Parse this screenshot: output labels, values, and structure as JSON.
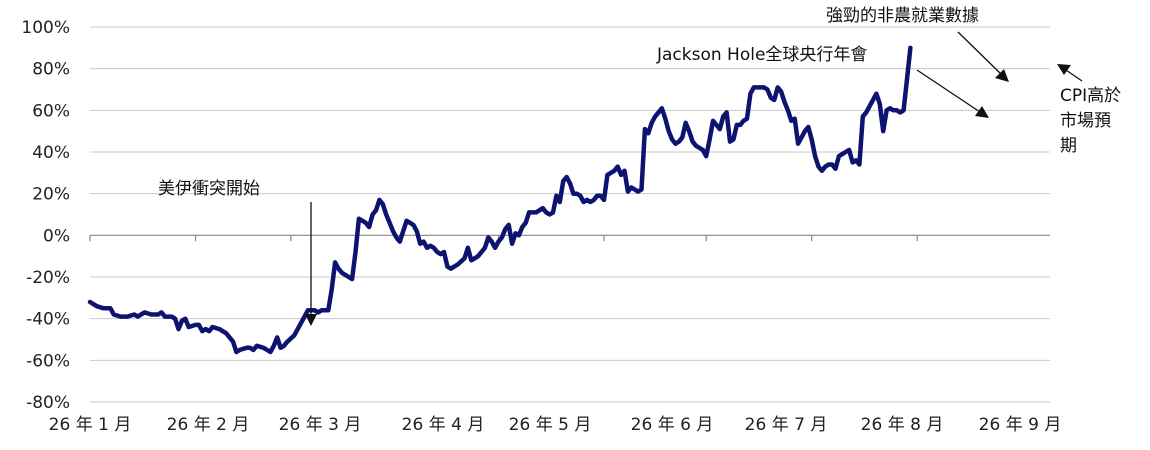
{
  "chart_data": {
    "type": "line",
    "title": "",
    "xlabel": "",
    "ylabel": "",
    "ylim": [
      -80,
      100
    ],
    "yticks": [
      -80,
      -60,
      -40,
      -20,
      0,
      20,
      40,
      60,
      80,
      100
    ],
    "ytick_labels": [
      "-80%",
      "-60%",
      "-40%",
      "-20%",
      "0%",
      "20%",
      "40%",
      "60%",
      "80%",
      "100%"
    ],
    "xlim": [
      0,
      282
    ],
    "x_ticks": [
      {
        "x": 0,
        "label": "26 年 1 月"
      },
      {
        "x": 31,
        "label": "26 年 2 月"
      },
      {
        "x": 59,
        "label": "26 年 3 月"
      },
      {
        "x": 90,
        "label": "26 年 4 月"
      },
      {
        "x": 120,
        "label": "26 年 5 月"
      },
      {
        "x": 151,
        "label": "26 年 6 月"
      },
      {
        "x": 181,
        "label": "26 年 7 月"
      },
      {
        "x": 212,
        "label": "26 年 8 月"
      },
      {
        "x": 243,
        "label": "26 年 9 月"
      }
    ],
    "grid": true,
    "series": [
      {
        "name": "",
        "color": "#0d1470",
        "points": [
          [
            0,
            -32
          ],
          [
            2,
            -34
          ],
          [
            4,
            -35
          ],
          [
            6,
            -35
          ],
          [
            7,
            -38
          ],
          [
            9,
            -39
          ],
          [
            11,
            -39
          ],
          [
            13,
            -38
          ],
          [
            14,
            -39
          ],
          [
            16,
            -37
          ],
          [
            18,
            -38
          ],
          [
            19,
            -38
          ],
          [
            20,
            -38
          ],
          [
            21,
            -37
          ],
          [
            22,
            -39
          ],
          [
            24,
            -39
          ],
          [
            25,
            -40
          ],
          [
            26,
            -45
          ],
          [
            27,
            -41
          ],
          [
            28,
            -40
          ],
          [
            29,
            -44
          ],
          [
            31,
            -43
          ],
          [
            32,
            -43
          ],
          [
            33,
            -46
          ],
          [
            34,
            -45
          ],
          [
            35,
            -46
          ],
          [
            36,
            -44
          ],
          [
            38,
            -45
          ],
          [
            40,
            -47
          ],
          [
            41,
            -49
          ],
          [
            42,
            -51
          ],
          [
            43,
            -56
          ],
          [
            44,
            -55
          ],
          [
            46,
            -54
          ],
          [
            47,
            -54
          ],
          [
            48,
            -55
          ],
          [
            49,
            -53
          ],
          [
            51,
            -54
          ],
          [
            53,
            -56
          ],
          [
            54,
            -53
          ],
          [
            55,
            -49
          ],
          [
            56,
            -54
          ],
          [
            57,
            -53
          ],
          [
            58,
            -51
          ],
          [
            60,
            -48
          ],
          [
            61,
            -45
          ],
          [
            62,
            -42
          ],
          [
            64,
            -36
          ],
          [
            66,
            -36
          ],
          [
            67,
            -37
          ],
          [
            68,
            -36
          ],
          [
            70,
            -36
          ],
          [
            71,
            -26
          ],
          [
            72,
            -13
          ],
          [
            73,
            -16
          ],
          [
            74,
            -18
          ],
          [
            76,
            -20
          ],
          [
            77,
            -21
          ],
          [
            78,
            -8
          ],
          [
            79,
            8
          ],
          [
            81,
            6
          ],
          [
            82,
            4
          ],
          [
            83,
            10
          ],
          [
            84,
            12
          ],
          [
            85,
            17
          ],
          [
            86,
            15
          ],
          [
            87,
            10
          ],
          [
            88,
            6
          ],
          [
            89,
            2
          ],
          [
            90,
            -1
          ],
          [
            91,
            -3
          ],
          [
            92,
            2
          ],
          [
            93,
            7
          ],
          [
            94,
            6
          ],
          [
            95,
            5
          ],
          [
            96,
            2
          ],
          [
            97,
            -4
          ],
          [
            98,
            -3
          ],
          [
            99,
            -6
          ],
          [
            100,
            -5
          ],
          [
            101,
            -6
          ],
          [
            102,
            -8
          ],
          [
            103,
            -9
          ],
          [
            104,
            -8
          ],
          [
            105,
            -15
          ],
          [
            106,
            -16
          ],
          [
            107,
            -15
          ],
          [
            108,
            -14
          ],
          [
            110,
            -11
          ],
          [
            111,
            -6
          ],
          [
            112,
            -12
          ],
          [
            113,
            -11
          ],
          [
            114,
            -10
          ],
          [
            115,
            -8
          ],
          [
            116,
            -6
          ],
          [
            117,
            -1
          ],
          [
            118,
            -3
          ],
          [
            119,
            -6
          ],
          [
            120,
            -3
          ],
          [
            121,
            -1
          ],
          [
            122,
            3
          ],
          [
            123,
            5
          ],
          [
            124,
            -4
          ],
          [
            125,
            1
          ],
          [
            126,
            0
          ],
          [
            127,
            4
          ],
          [
            128,
            6
          ],
          [
            129,
            11
          ],
          [
            130,
            11
          ],
          [
            131,
            11
          ],
          [
            132,
            12
          ],
          [
            133,
            13
          ],
          [
            134,
            11
          ],
          [
            135,
            10
          ],
          [
            136,
            11
          ],
          [
            137,
            19
          ],
          [
            138,
            16
          ],
          [
            139,
            26
          ],
          [
            140,
            28
          ],
          [
            141,
            25
          ],
          [
            142,
            20
          ],
          [
            143,
            20
          ],
          [
            144,
            19
          ],
          [
            145,
            16
          ],
          [
            146,
            17
          ],
          [
            147,
            16
          ],
          [
            148,
            17
          ],
          [
            149,
            19
          ],
          [
            150,
            19
          ],
          [
            151,
            17
          ],
          [
            152,
            29
          ],
          [
            153,
            30
          ],
          [
            154,
            31
          ],
          [
            155,
            33
          ],
          [
            156,
            29
          ],
          [
            157,
            31
          ],
          [
            158,
            21
          ],
          [
            159,
            23
          ],
          [
            160,
            22
          ],
          [
            161,
            21
          ],
          [
            162,
            22
          ],
          [
            163,
            51
          ],
          [
            164,
            49
          ],
          [
            165,
            54
          ],
          [
            166,
            57
          ],
          [
            167,
            59
          ],
          [
            168,
            61
          ],
          [
            169,
            56
          ],
          [
            170,
            50
          ],
          [
            171,
            46
          ],
          [
            172,
            44
          ],
          [
            173,
            45
          ],
          [
            174,
            47
          ],
          [
            175,
            54
          ],
          [
            176,
            50
          ],
          [
            177,
            45
          ],
          [
            178,
            43
          ],
          [
            179,
            42
          ],
          [
            180,
            41
          ],
          [
            181,
            38
          ],
          [
            182,
            46
          ],
          [
            183,
            55
          ],
          [
            184,
            53
          ],
          [
            185,
            51
          ],
          [
            186,
            57
          ],
          [
            187,
            59
          ],
          [
            188,
            45
          ],
          [
            189,
            46
          ],
          [
            190,
            53
          ],
          [
            191,
            53
          ],
          [
            192,
            55
          ],
          [
            193,
            56
          ],
          [
            194,
            68
          ],
          [
            195,
            71
          ],
          [
            196,
            71
          ],
          [
            197,
            71
          ],
          [
            198,
            71
          ],
          [
            199,
            70
          ],
          [
            200,
            66
          ],
          [
            201,
            65
          ],
          [
            202,
            71
          ],
          [
            203,
            69
          ],
          [
            204,
            64
          ],
          [
            205,
            60
          ],
          [
            206,
            55
          ],
          [
            207,
            56
          ],
          [
            208,
            44
          ],
          [
            209,
            47
          ],
          [
            210,
            50
          ],
          [
            211,
            52
          ],
          [
            212,
            46
          ],
          [
            213,
            38
          ],
          [
            214,
            33
          ],
          [
            215,
            31
          ],
          [
            216,
            33
          ],
          [
            217,
            34
          ],
          [
            218,
            34
          ],
          [
            219,
            32
          ],
          [
            220,
            38
          ],
          [
            221,
            39
          ],
          [
            222,
            40
          ],
          [
            223,
            41
          ],
          [
            224,
            35
          ],
          [
            225,
            36
          ],
          [
            226,
            34
          ],
          [
            227,
            57
          ],
          [
            228,
            59
          ],
          [
            229,
            62
          ],
          [
            230,
            65
          ],
          [
            231,
            68
          ],
          [
            232,
            63
          ],
          [
            233,
            50
          ],
          [
            234,
            60
          ],
          [
            235,
            61
          ],
          [
            236,
            60
          ],
          [
            237,
            60
          ],
          [
            238,
            59
          ],
          [
            239,
            60
          ],
          [
            240,
            75
          ],
          [
            241,
            90
          ]
        ]
      }
    ],
    "annotations": [
      {
        "text": "美伊衝突開始"
      },
      {
        "text": "Jackson Hole全球央行年會"
      },
      {
        "text": "強勁的非農就業數據"
      },
      {
        "lines": [
          "CPI高於",
          "市場預",
          "期"
        ]
      }
    ]
  }
}
